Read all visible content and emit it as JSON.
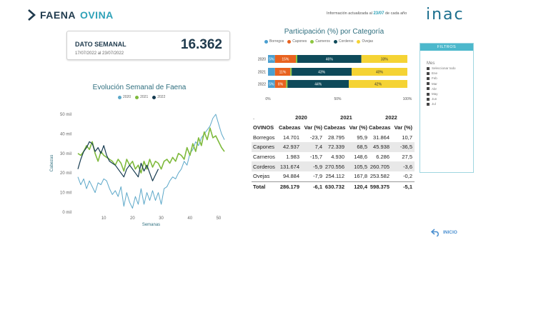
{
  "header": {
    "title_part1": "FAENA",
    "title_part2": "OVINA",
    "update_text": "Información actualizada al",
    "update_date": "23/07",
    "update_suffix": "de cada año",
    "logo": "inac"
  },
  "kpi": {
    "label": "DATO SEMANAL",
    "range": "17/07/2022 al 23/07/2022",
    "value": "16.362"
  },
  "line_chart_title": "Evolución Semanal de Faena",
  "bar_chart_title": "Participación (%) por Categoría",
  "filters": {
    "title": "FILTROS",
    "mes_label": "Mes",
    "options": [
      "Seleccionar todo",
      "Ene",
      "Feb",
      "Mar",
      "Abr",
      "May",
      "Jun",
      "Jul"
    ]
  },
  "table": {
    "dot": ".",
    "years": [
      "2020",
      "2021",
      "2022"
    ],
    "col_category": "OVINOS",
    "col_heads": "Cabezas",
    "col_var": "Var (%)",
    "rows": [
      {
        "name": "Borregos",
        "v": [
          "14.701",
          "-23,7",
          "28.795",
          "95,9",
          "31.864",
          "10,7"
        ]
      },
      {
        "name": "Capones",
        "v": [
          "42.937",
          "7,4",
          "72.339",
          "68,5",
          "45.938",
          "-36,5"
        ]
      },
      {
        "name": "Carneros",
        "v": [
          "1.983",
          "-15,7",
          "4.930",
          "148,6",
          "6.286",
          "27,5"
        ]
      },
      {
        "name": "Corderos",
        "v": [
          "131.674",
          "-5,9",
          "270.556",
          "105,5",
          "260.705",
          "-3,6"
        ]
      },
      {
        "name": "Ovejas",
        "v": [
          "94.884",
          "-7,9",
          "254.112",
          "167,8",
          "253.582",
          "-0,2"
        ]
      }
    ],
    "total": {
      "name": "Total",
      "v": [
        "286.179",
        "-6,1",
        "630.732",
        "120,4",
        "598.375",
        "-5,1"
      ]
    }
  },
  "inicio_label": "INICIO",
  "colors": {
    "y2020": "#5da8c9",
    "y2021": "#7fba3d",
    "y2022": "#14394f",
    "borregos": "#4a9fd0",
    "capones": "#e8621f",
    "carneros": "#8cc63f",
    "corderos": "#0e4a5a",
    "ovejas": "#f5d334"
  },
  "chart_data": [
    {
      "type": "line",
      "title": "Evolución Semanal de Faena",
      "xlabel": "Semanas",
      "ylabel": "Cabezas",
      "xlim": [
        0,
        53
      ],
      "ylim": [
        0,
        50000
      ],
      "x_ticks": [
        10,
        20,
        30,
        40,
        50
      ],
      "y_ticks": [
        0,
        10000,
        20000,
        30000,
        40000,
        50000
      ],
      "y_tick_labels": [
        "0 mil",
        "10 mil",
        "20 mil",
        "30 mil",
        "40 mil",
        "50 mil"
      ],
      "series": [
        {
          "name": "2020",
          "x": [
            1,
            2,
            3,
            4,
            5,
            6,
            7,
            8,
            9,
            10,
            11,
            12,
            13,
            14,
            15,
            16,
            17,
            18,
            19,
            20,
            21,
            22,
            23,
            24,
            25,
            26,
            27,
            28,
            29,
            30,
            31,
            32,
            33,
            34,
            35,
            36,
            37,
            38,
            39,
            40,
            41,
            42,
            43,
            44,
            45,
            46,
            47,
            48,
            49,
            50,
            51,
            52
          ],
          "values": [
            18000,
            14000,
            17000,
            12000,
            16000,
            13000,
            10000,
            15000,
            14000,
            17000,
            16000,
            12000,
            9000,
            11000,
            8000,
            13000,
            3000,
            10000,
            5000,
            2000,
            8000,
            4000,
            12000,
            4000,
            10000,
            6000,
            11000,
            6000,
            10000,
            4000,
            12000,
            13000,
            16000,
            18000,
            17000,
            20000,
            22000,
            26000,
            24000,
            30000,
            32000,
            36000,
            34000,
            38000,
            40000,
            42000,
            44000,
            48000,
            50000,
            45000,
            40000,
            37000
          ]
        },
        {
          "name": "2021",
          "x": [
            1,
            2,
            3,
            4,
            5,
            6,
            7,
            8,
            9,
            10,
            11,
            12,
            13,
            14,
            15,
            16,
            17,
            18,
            19,
            20,
            21,
            22,
            23,
            24,
            25,
            26,
            27,
            28,
            29,
            30,
            31,
            32,
            33,
            34,
            35,
            36,
            37,
            38,
            39,
            40,
            41,
            42,
            43,
            44,
            45,
            46,
            47,
            48,
            49,
            50,
            51,
            52
          ],
          "values": [
            30000,
            29000,
            31000,
            34000,
            32000,
            36000,
            30000,
            26000,
            31000,
            29000,
            28000,
            27000,
            26000,
            24000,
            27000,
            25000,
            21000,
            27000,
            24000,
            26000,
            22000,
            24000,
            20000,
            26000,
            22000,
            27000,
            23000,
            26000,
            25000,
            22000,
            26000,
            27000,
            25000,
            28000,
            26000,
            30000,
            29000,
            27000,
            33000,
            29000,
            35000,
            31000,
            38000,
            34000,
            41000,
            37000,
            43000,
            38000,
            39000,
            36000,
            33000,
            31000
          ]
        },
        {
          "name": "2022",
          "x": [
            1,
            2,
            3,
            4,
            5,
            6,
            7,
            8,
            9,
            10,
            11,
            12,
            13,
            14,
            15,
            16,
            17,
            18,
            19,
            20,
            21,
            22,
            23,
            24,
            25,
            26,
            27,
            28,
            29
          ],
          "values": [
            22000,
            27000,
            31000,
            33000,
            36000,
            35000,
            31000,
            33000,
            30000,
            34000,
            29000,
            26000,
            25000,
            24000,
            22000,
            20000,
            18000,
            22000,
            24000,
            22000,
            20000,
            18000,
            25000,
            21000,
            24000,
            20000,
            16000,
            19000,
            22000
          ]
        }
      ]
    },
    {
      "type": "bar",
      "orientation": "horizontal-stacked-100",
      "title": "Participación (%) por Categoría",
      "categories": [
        "2020",
        "2021",
        "2022"
      ],
      "x_tick_labels": [
        "0%",
        "50%",
        "100%"
      ],
      "series": [
        {
          "name": "Borregos",
          "values": [
            5,
            5,
            5
          ]
        },
        {
          "name": "Capones",
          "values": [
            15,
            11,
            8
          ]
        },
        {
          "name": "Carneros",
          "values": [
            1,
            1,
            1
          ]
        },
        {
          "name": "Corderos",
          "values": [
            46,
            43,
            44
          ]
        },
        {
          "name": "Ovejas",
          "values": [
            33,
            40,
            42
          ]
        }
      ],
      "labels": [
        [
          "5%",
          "15%",
          "",
          "46%",
          "33%"
        ],
        [
          "",
          "11%",
          "",
          "43%",
          "40%"
        ],
        [
          "5%",
          "8%",
          "",
          "44%",
          "42%"
        ]
      ]
    }
  ]
}
